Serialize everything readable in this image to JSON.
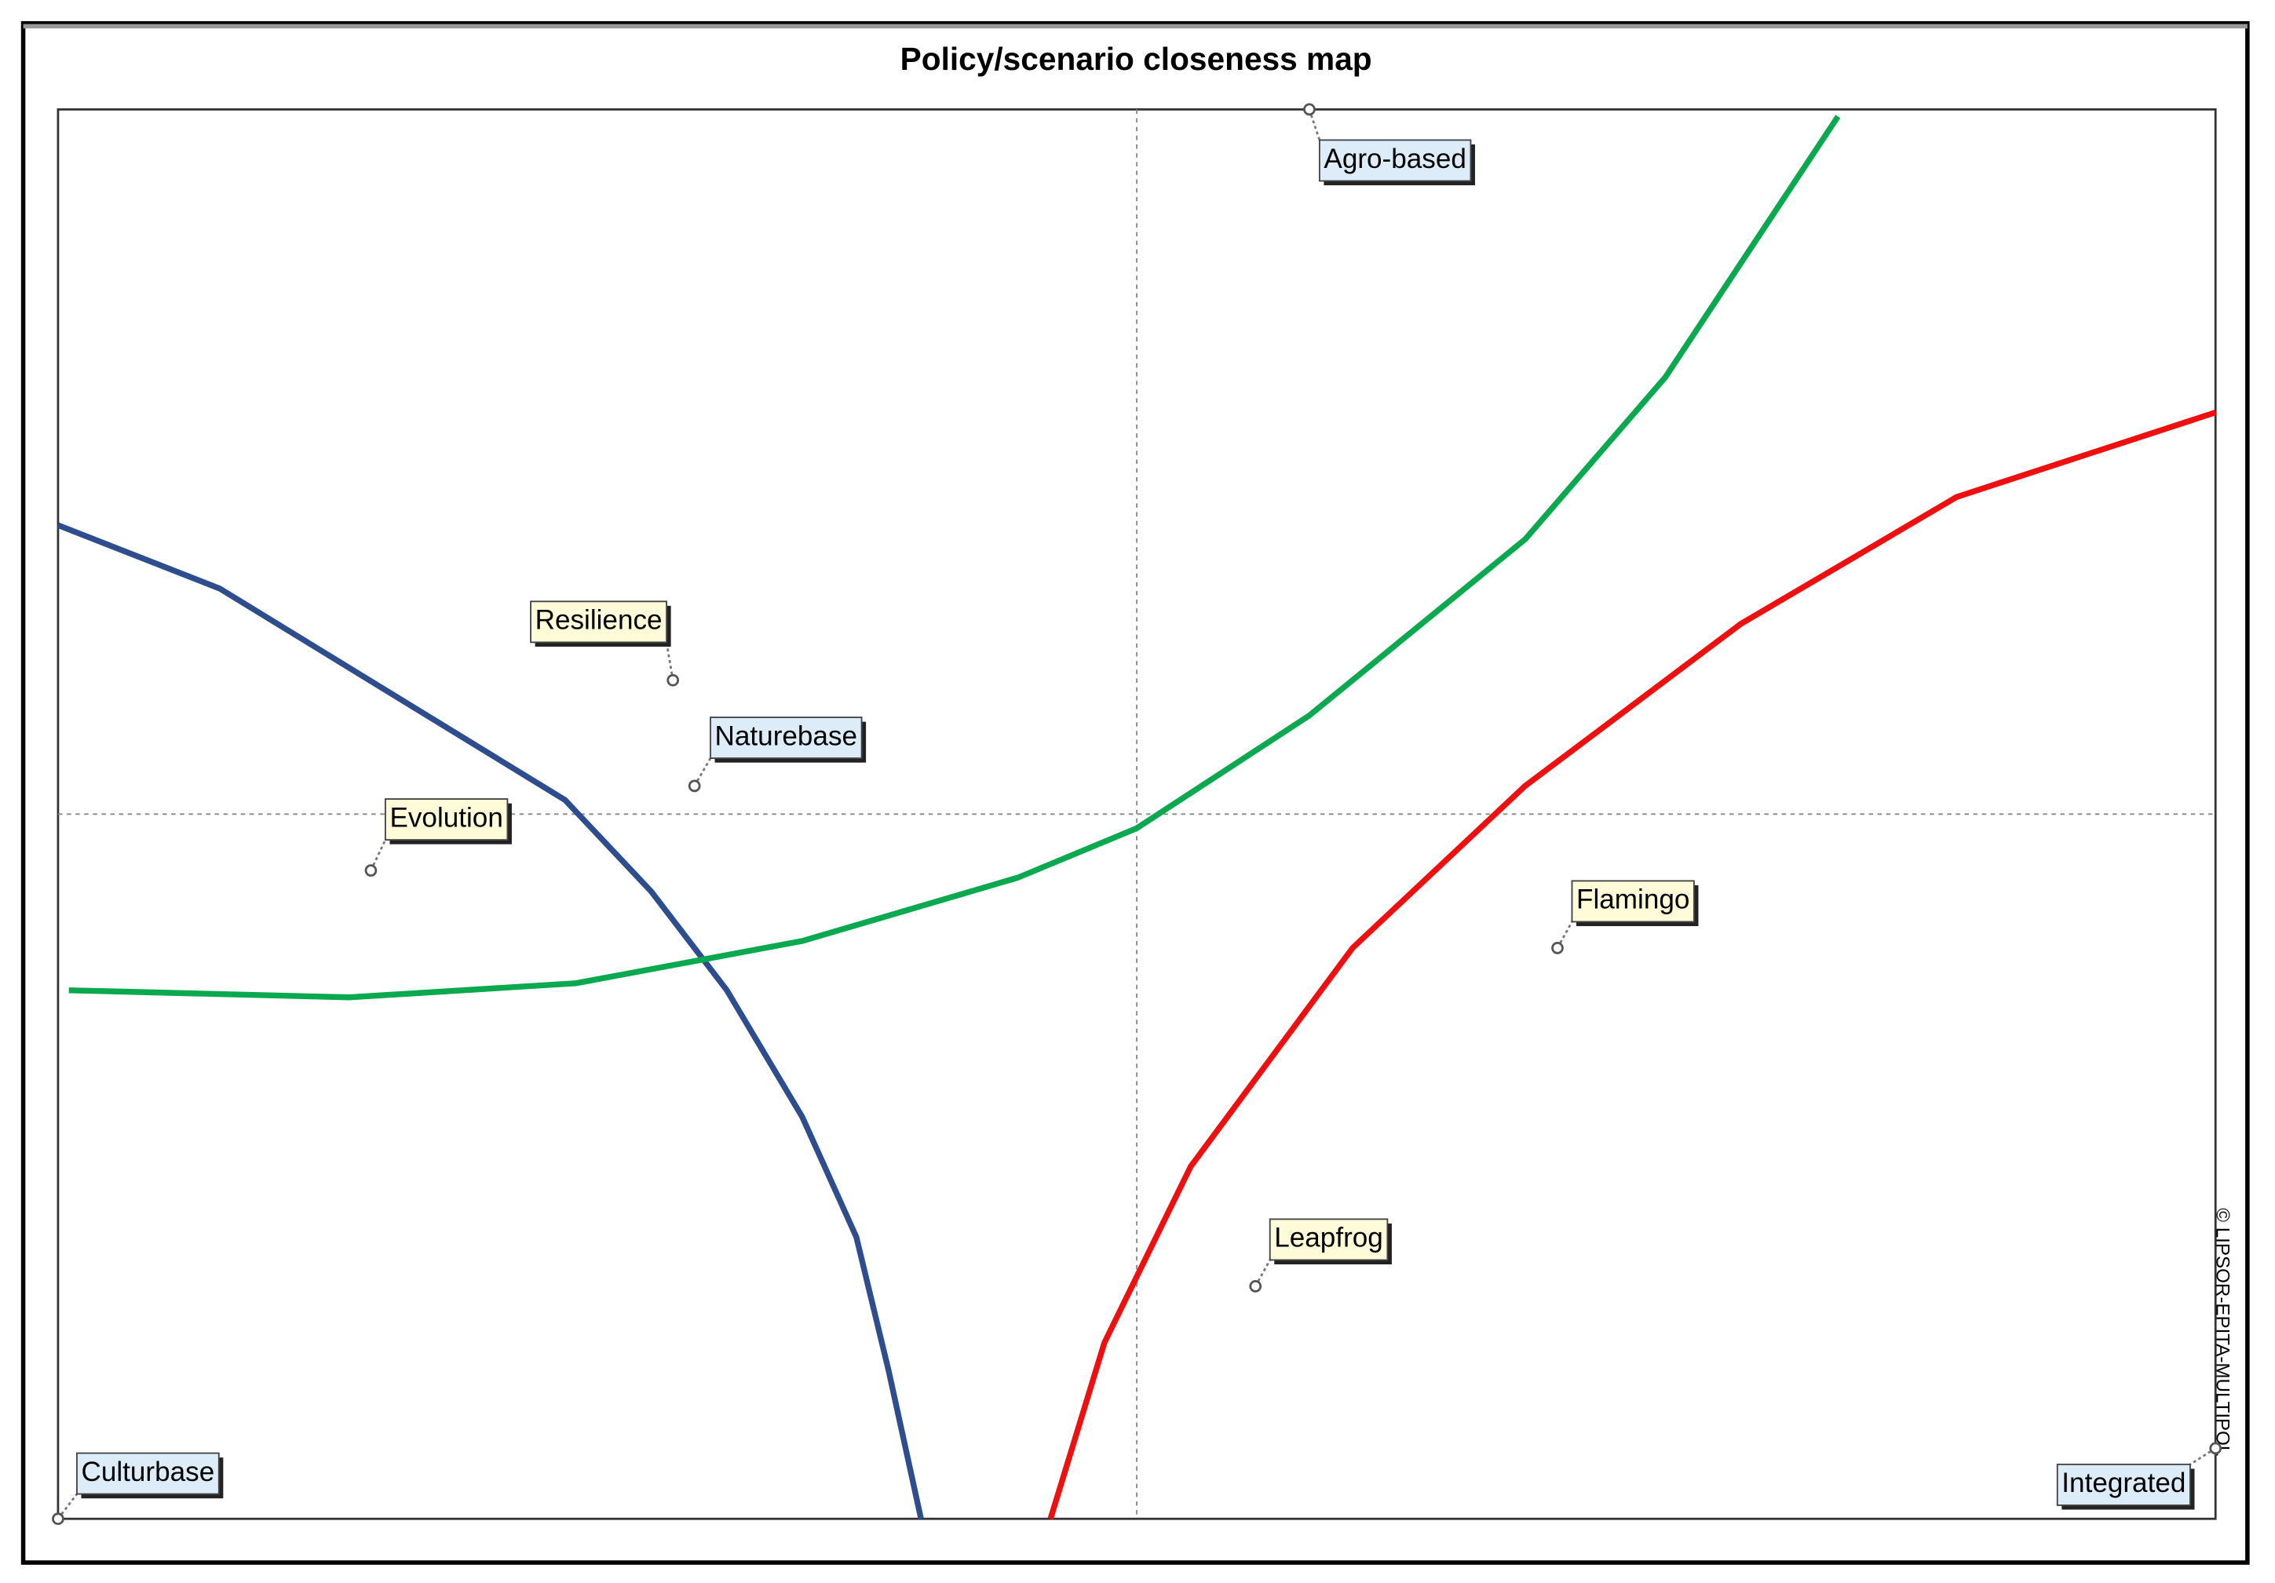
{
  "chart_data": {
    "type": "scatter",
    "title": "Policy/scenario closeness map",
    "credit": "© LIPSOR-EPITA-MULTIPOL",
    "xlim": [
      -1,
      1
    ],
    "ylim": [
      -1,
      1
    ],
    "points": [
      {
        "name": "Agro-based",
        "x": 0.16,
        "y": 1.0,
        "color": "#dcecf8"
      },
      {
        "name": "Resilience",
        "x": -0.43,
        "y": 0.19,
        "color": "#fdfbd8"
      },
      {
        "name": "Naturebase",
        "x": -0.41,
        "y": 0.04,
        "color": "#dcecf8"
      },
      {
        "name": "Evolution",
        "x": -0.71,
        "y": -0.08,
        "color": "#fdfbd8"
      },
      {
        "name": "Flamingo",
        "x": 0.39,
        "y": -0.19,
        "color": "#fdfbd8"
      },
      {
        "name": "Leapfrog",
        "x": 0.11,
        "y": -0.67,
        "color": "#fdfbd8"
      },
      {
        "name": "Culturbase",
        "x": -1.0,
        "y": -1.0,
        "color": "#dcecf8"
      },
      {
        "name": "Integrated",
        "x": 1.0,
        "y": -0.9,
        "color": "#dcecf8"
      }
    ],
    "curves": [
      {
        "color": "#2e4d8f",
        "x": [
          -1.0,
          -0.85,
          -0.69,
          -0.53,
          -0.45,
          -0.38,
          -0.31,
          -0.26,
          -0.23,
          -0.2
        ],
        "y": [
          0.41,
          0.32,
          0.17,
          0.02,
          -0.11,
          -0.25,
          -0.43,
          -0.6,
          -0.79,
          -1.0
        ]
      },
      {
        "color": "#0aa84f",
        "x": [
          -0.99,
          -0.73,
          -0.52,
          -0.31,
          -0.11,
          0.0,
          0.16,
          0.36,
          0.49,
          0.65
        ],
        "y": [
          -0.25,
          -0.26,
          -0.24,
          -0.18,
          -0.09,
          -0.02,
          0.14,
          0.39,
          0.62,
          0.99
        ]
      },
      {
        "color": "#f00f0f",
        "x": [
          -0.08,
          -0.03,
          0.05,
          0.2,
          0.36,
          0.56,
          0.76,
          1.0
        ],
        "y": [
          -1.0,
          -0.75,
          -0.5,
          -0.19,
          0.04,
          0.27,
          0.45,
          0.57
        ]
      }
    ]
  }
}
